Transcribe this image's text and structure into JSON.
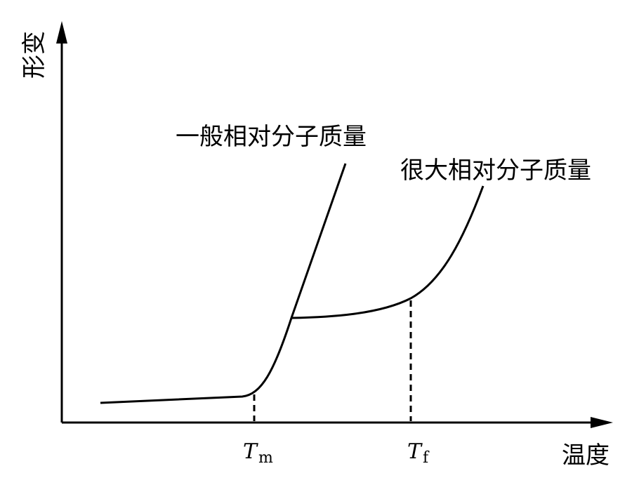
{
  "axes": {
    "y_label": "形变",
    "x_label": "温度"
  },
  "ticks": [
    {
      "symbol": "T",
      "subscript": "m"
    },
    {
      "symbol": "T",
      "subscript": "f"
    }
  ],
  "curves": [
    {
      "label": "一般相对分子质量"
    },
    {
      "label": "很大相对分子质量"
    }
  ]
}
